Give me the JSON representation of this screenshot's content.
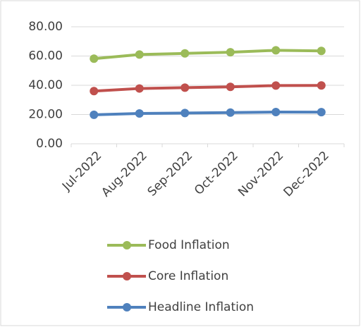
{
  "chart_data": {
    "type": "line",
    "categories": [
      "Jul-2022",
      "Aug-2022",
      "Sep-2022",
      "Oct-2022",
      "Nov-2022",
      "Dec-2022"
    ],
    "series": [
      {
        "name": "Food Inflation",
        "color": "#9bbb59",
        "values": [
          58.2,
          61.0,
          61.8,
          62.6,
          63.9,
          63.5
        ]
      },
      {
        "name": "Core Inflation",
        "color": "#c0504d",
        "values": [
          36.0,
          37.8,
          38.4,
          38.9,
          39.8,
          39.9
        ]
      },
      {
        "name": "Headline Inflation",
        "color": "#4f81bd",
        "values": [
          19.8,
          20.7,
          21.0,
          21.3,
          21.7,
          21.6
        ]
      }
    ],
    "ylim": [
      0,
      80
    ],
    "yticks": [
      {
        "value": 0,
        "label": "0.00"
      },
      {
        "value": 20,
        "label": "20.00"
      },
      {
        "value": 40,
        "label": "40.00"
      },
      {
        "value": 60,
        "label": "60.00"
      },
      {
        "value": 80,
        "label": "80.00"
      }
    ],
    "grid": true
  }
}
